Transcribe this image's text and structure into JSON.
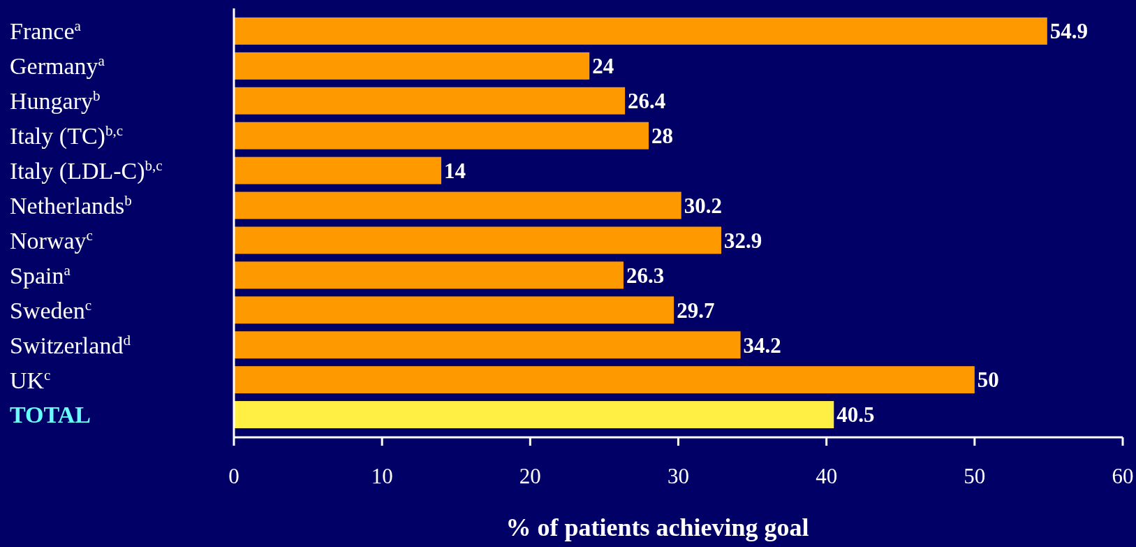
{
  "chart_data": {
    "type": "bar",
    "orientation": "horizontal",
    "categories": [
      "France$^{a}$",
      "Germany$^{a}$",
      "Hungary$^{b}$",
      "Italy (TC)$^{b,c}$",
      "Italy (LDL-C)$^{b,c}$",
      "Netherlands$^{b}$",
      "Norway$^{c}$",
      "Spain$^{a}$",
      "Sweden$^{c}$",
      "Switzerland$^{d}$",
      "UK$^{c}$",
      "TOTAL"
    ],
    "values": [
      54.9,
      24,
      26.4,
      28,
      14,
      30.2,
      32.9,
      26.3,
      29.7,
      34.2,
      50,
      40.5
    ],
    "colors": [
      "#ff9900",
      "#ff9900",
      "#ff9900",
      "#ff9900",
      "#ff9900",
      "#ff9900",
      "#ff9900",
      "#ff9900",
      "#ff9900",
      "#ff9900",
      "#ff9900",
      "#ffee44"
    ],
    "xlim": [
      0,
      60
    ],
    "xticks": [
      0,
      10,
      20,
      30,
      40,
      50,
      60
    ],
    "xlabel": "% of patients achieving goal",
    "data_labels": true
  }
}
